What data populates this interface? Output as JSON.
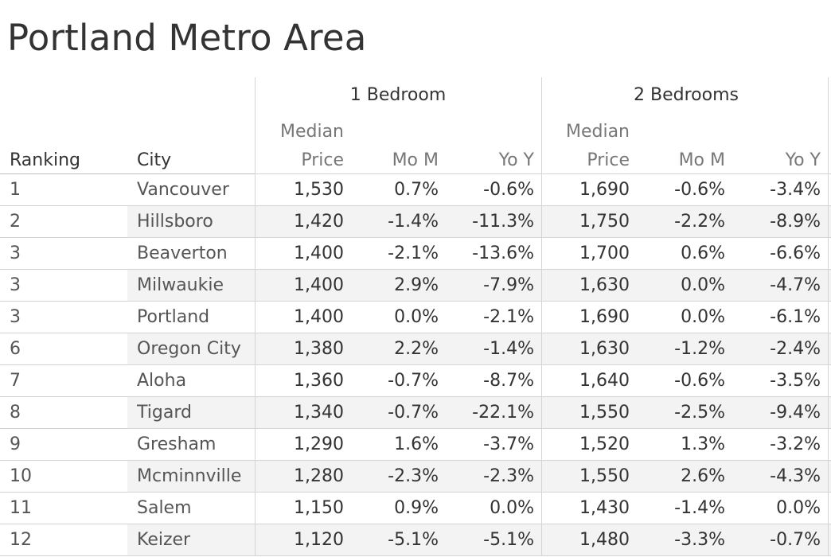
{
  "title": "Portland Metro Area",
  "chart_data": {
    "type": "table",
    "title": "Portland Metro Area",
    "column_groups": [
      {
        "label": "1 Bedroom",
        "columns": [
          "Median Price",
          "Mo M",
          "Yo Y"
        ]
      },
      {
        "label": "2 Bedrooms",
        "columns": [
          "Median Price",
          "Mo M",
          "Yo Y"
        ]
      }
    ],
    "row_headers": [
      "Ranking",
      "City"
    ],
    "header_labels": {
      "ranking": "Ranking",
      "city": "City",
      "median_line1": "Median",
      "median_line2": "Price",
      "mom": "Mo M",
      "yoy": "Yo Y"
    },
    "rows": [
      {
        "rank": "1",
        "city": "Vancouver",
        "b1_price": "1,530",
        "b1_mom": "0.7%",
        "b1_yoy": "-0.6%",
        "b2_price": "1,690",
        "b2_mom": "-0.6%",
        "b2_yoy": "-3.4%"
      },
      {
        "rank": "2",
        "city": "Hillsboro",
        "b1_price": "1,420",
        "b1_mom": "-1.4%",
        "b1_yoy": "-11.3%",
        "b2_price": "1,750",
        "b2_mom": "-2.2%",
        "b2_yoy": "-8.9%"
      },
      {
        "rank": "3",
        "city": "Beaverton",
        "b1_price": "1,400",
        "b1_mom": "-2.1%",
        "b1_yoy": "-13.6%",
        "b2_price": "1,700",
        "b2_mom": "0.6%",
        "b2_yoy": "-6.6%"
      },
      {
        "rank": "3",
        "city": "Milwaukie",
        "b1_price": "1,400",
        "b1_mom": "2.9%",
        "b1_yoy": "-7.9%",
        "b2_price": "1,630",
        "b2_mom": "0.0%",
        "b2_yoy": "-4.7%"
      },
      {
        "rank": "3",
        "city": "Portland",
        "b1_price": "1,400",
        "b1_mom": "0.0%",
        "b1_yoy": "-2.1%",
        "b2_price": "1,690",
        "b2_mom": "0.0%",
        "b2_yoy": "-6.1%"
      },
      {
        "rank": "6",
        "city": "Oregon City",
        "b1_price": "1,380",
        "b1_mom": "2.2%",
        "b1_yoy": "-1.4%",
        "b2_price": "1,630",
        "b2_mom": "-1.2%",
        "b2_yoy": "-2.4%"
      },
      {
        "rank": "7",
        "city": "Aloha",
        "b1_price": "1,360",
        "b1_mom": "-0.7%",
        "b1_yoy": "-8.7%",
        "b2_price": "1,640",
        "b2_mom": "-0.6%",
        "b2_yoy": "-3.5%"
      },
      {
        "rank": "8",
        "city": "Tigard",
        "b1_price": "1,340",
        "b1_mom": "-0.7%",
        "b1_yoy": "-22.1%",
        "b2_price": "1,550",
        "b2_mom": "-2.5%",
        "b2_yoy": "-9.4%"
      },
      {
        "rank": "9",
        "city": "Gresham",
        "b1_price": "1,290",
        "b1_mom": "1.6%",
        "b1_yoy": "-3.7%",
        "b2_price": "1,520",
        "b2_mom": "1.3%",
        "b2_yoy": "-3.2%"
      },
      {
        "rank": "10",
        "city": "Mcminnville",
        "b1_price": "1,280",
        "b1_mom": "-2.3%",
        "b1_yoy": "-2.3%",
        "b2_price": "1,550",
        "b2_mom": "2.6%",
        "b2_yoy": "-4.3%"
      },
      {
        "rank": "11",
        "city": "Salem",
        "b1_price": "1,150",
        "b1_mom": "0.9%",
        "b1_yoy": "0.0%",
        "b2_price": "1,430",
        "b2_mom": "-1.4%",
        "b2_yoy": "0.0%"
      },
      {
        "rank": "12",
        "city": "Keizer",
        "b1_price": "1,120",
        "b1_mom": "-5.1%",
        "b1_yoy": "-5.1%",
        "b2_price": "1,480",
        "b2_mom": "-3.3%",
        "b2_yoy": "-0.7%"
      }
    ]
  }
}
